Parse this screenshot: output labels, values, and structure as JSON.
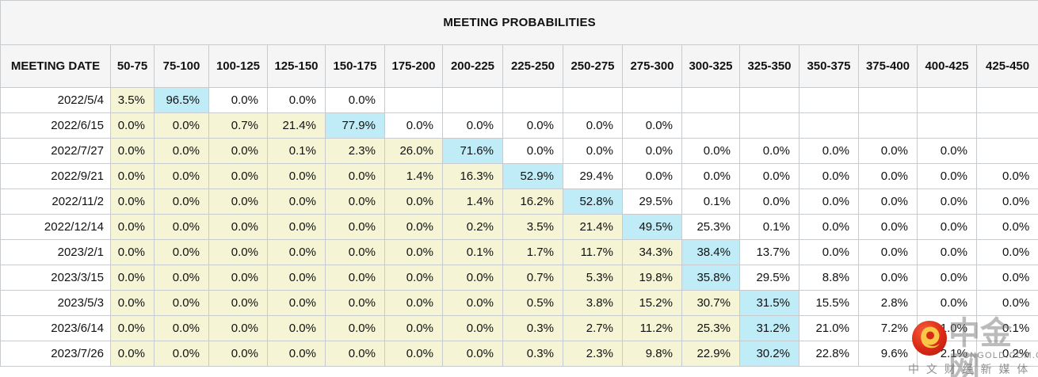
{
  "chart_data": {
    "type": "table",
    "title": "MEETING PROBABILITIES",
    "columns": [
      "MEETING DATE",
      "50-75",
      "75-100",
      "100-125",
      "125-150",
      "150-175",
      "175-200",
      "200-225",
      "225-250",
      "250-275",
      "275-300",
      "300-325",
      "325-350",
      "350-375",
      "375-400",
      "400-425",
      "425-450"
    ],
    "cell_encoding": {
      "format": "[value, background_code]",
      "background_codes": {
        "y": "yellow #f5f5d6",
        "c": "cyan #c0ecf7",
        "w": "white #ffffff",
        "e": "empty white cell"
      }
    },
    "rows": [
      {
        "date": "2022/5/4",
        "cells": [
          [
            "3.5%",
            "y"
          ],
          [
            "96.5%",
            "c"
          ],
          [
            "0.0%",
            "w"
          ],
          [
            "0.0%",
            "w"
          ],
          [
            "0.0%",
            "w"
          ],
          [
            "",
            "e"
          ],
          [
            "",
            "e"
          ],
          [
            "",
            "e"
          ],
          [
            "",
            "e"
          ],
          [
            "",
            "e"
          ],
          [
            "",
            "e"
          ],
          [
            "",
            "e"
          ],
          [
            "",
            "e"
          ],
          [
            "",
            "e"
          ],
          [
            "",
            "e"
          ],
          [
            "",
            "e"
          ]
        ]
      },
      {
        "date": "2022/6/15",
        "cells": [
          [
            "0.0%",
            "y"
          ],
          [
            "0.0%",
            "y"
          ],
          [
            "0.7%",
            "y"
          ],
          [
            "21.4%",
            "y"
          ],
          [
            "77.9%",
            "c"
          ],
          [
            "0.0%",
            "w"
          ],
          [
            "0.0%",
            "w"
          ],
          [
            "0.0%",
            "w"
          ],
          [
            "0.0%",
            "w"
          ],
          [
            "0.0%",
            "w"
          ],
          [
            "",
            "e"
          ],
          [
            "",
            "e"
          ],
          [
            "",
            "e"
          ],
          [
            "",
            "e"
          ],
          [
            "",
            "e"
          ],
          [
            "",
            "e"
          ]
        ]
      },
      {
        "date": "2022/7/27",
        "cells": [
          [
            "0.0%",
            "y"
          ],
          [
            "0.0%",
            "y"
          ],
          [
            "0.0%",
            "y"
          ],
          [
            "0.1%",
            "y"
          ],
          [
            "2.3%",
            "y"
          ],
          [
            "26.0%",
            "y"
          ],
          [
            "71.6%",
            "c"
          ],
          [
            "0.0%",
            "w"
          ],
          [
            "0.0%",
            "w"
          ],
          [
            "0.0%",
            "w"
          ],
          [
            "0.0%",
            "w"
          ],
          [
            "0.0%",
            "w"
          ],
          [
            "0.0%",
            "w"
          ],
          [
            "0.0%",
            "w"
          ],
          [
            "0.0%",
            "w"
          ],
          [
            "",
            "e"
          ]
        ]
      },
      {
        "date": "2022/9/21",
        "cells": [
          [
            "0.0%",
            "y"
          ],
          [
            "0.0%",
            "y"
          ],
          [
            "0.0%",
            "y"
          ],
          [
            "0.0%",
            "y"
          ],
          [
            "0.0%",
            "y"
          ],
          [
            "1.4%",
            "y"
          ],
          [
            "16.3%",
            "y"
          ],
          [
            "52.9%",
            "c"
          ],
          [
            "29.4%",
            "w"
          ],
          [
            "0.0%",
            "w"
          ],
          [
            "0.0%",
            "w"
          ],
          [
            "0.0%",
            "w"
          ],
          [
            "0.0%",
            "w"
          ],
          [
            "0.0%",
            "w"
          ],
          [
            "0.0%",
            "w"
          ],
          [
            "0.0%",
            "w"
          ]
        ]
      },
      {
        "date": "2022/11/2",
        "cells": [
          [
            "0.0%",
            "y"
          ],
          [
            "0.0%",
            "y"
          ],
          [
            "0.0%",
            "y"
          ],
          [
            "0.0%",
            "y"
          ],
          [
            "0.0%",
            "y"
          ],
          [
            "0.0%",
            "y"
          ],
          [
            "1.4%",
            "y"
          ],
          [
            "16.2%",
            "y"
          ],
          [
            "52.8%",
            "c"
          ],
          [
            "29.5%",
            "w"
          ],
          [
            "0.1%",
            "w"
          ],
          [
            "0.0%",
            "w"
          ],
          [
            "0.0%",
            "w"
          ],
          [
            "0.0%",
            "w"
          ],
          [
            "0.0%",
            "w"
          ],
          [
            "0.0%",
            "w"
          ]
        ]
      },
      {
        "date": "2022/12/14",
        "cells": [
          [
            "0.0%",
            "y"
          ],
          [
            "0.0%",
            "y"
          ],
          [
            "0.0%",
            "y"
          ],
          [
            "0.0%",
            "y"
          ],
          [
            "0.0%",
            "y"
          ],
          [
            "0.0%",
            "y"
          ],
          [
            "0.2%",
            "y"
          ],
          [
            "3.5%",
            "y"
          ],
          [
            "21.4%",
            "y"
          ],
          [
            "49.5%",
            "c"
          ],
          [
            "25.3%",
            "w"
          ],
          [
            "0.1%",
            "w"
          ],
          [
            "0.0%",
            "w"
          ],
          [
            "0.0%",
            "w"
          ],
          [
            "0.0%",
            "w"
          ],
          [
            "0.0%",
            "w"
          ]
        ]
      },
      {
        "date": "2023/2/1",
        "cells": [
          [
            "0.0%",
            "y"
          ],
          [
            "0.0%",
            "y"
          ],
          [
            "0.0%",
            "y"
          ],
          [
            "0.0%",
            "y"
          ],
          [
            "0.0%",
            "y"
          ],
          [
            "0.0%",
            "y"
          ],
          [
            "0.1%",
            "y"
          ],
          [
            "1.7%",
            "y"
          ],
          [
            "11.7%",
            "y"
          ],
          [
            "34.3%",
            "y"
          ],
          [
            "38.4%",
            "c"
          ],
          [
            "13.7%",
            "w"
          ],
          [
            "0.0%",
            "w"
          ],
          [
            "0.0%",
            "w"
          ],
          [
            "0.0%",
            "w"
          ],
          [
            "0.0%",
            "w"
          ]
        ]
      },
      {
        "date": "2023/3/15",
        "cells": [
          [
            "0.0%",
            "y"
          ],
          [
            "0.0%",
            "y"
          ],
          [
            "0.0%",
            "y"
          ],
          [
            "0.0%",
            "y"
          ],
          [
            "0.0%",
            "y"
          ],
          [
            "0.0%",
            "y"
          ],
          [
            "0.0%",
            "y"
          ],
          [
            "0.7%",
            "y"
          ],
          [
            "5.3%",
            "y"
          ],
          [
            "19.8%",
            "y"
          ],
          [
            "35.8%",
            "c"
          ],
          [
            "29.5%",
            "w"
          ],
          [
            "8.8%",
            "w"
          ],
          [
            "0.0%",
            "w"
          ],
          [
            "0.0%",
            "w"
          ],
          [
            "0.0%",
            "w"
          ]
        ]
      },
      {
        "date": "2023/5/3",
        "cells": [
          [
            "0.0%",
            "y"
          ],
          [
            "0.0%",
            "y"
          ],
          [
            "0.0%",
            "y"
          ],
          [
            "0.0%",
            "y"
          ],
          [
            "0.0%",
            "y"
          ],
          [
            "0.0%",
            "y"
          ],
          [
            "0.0%",
            "y"
          ],
          [
            "0.5%",
            "y"
          ],
          [
            "3.8%",
            "y"
          ],
          [
            "15.2%",
            "y"
          ],
          [
            "30.7%",
            "y"
          ],
          [
            "31.5%",
            "c"
          ],
          [
            "15.5%",
            "w"
          ],
          [
            "2.8%",
            "w"
          ],
          [
            "0.0%",
            "w"
          ],
          [
            "0.0%",
            "w"
          ]
        ]
      },
      {
        "date": "2023/6/14",
        "cells": [
          [
            "0.0%",
            "y"
          ],
          [
            "0.0%",
            "y"
          ],
          [
            "0.0%",
            "y"
          ],
          [
            "0.0%",
            "y"
          ],
          [
            "0.0%",
            "y"
          ],
          [
            "0.0%",
            "y"
          ],
          [
            "0.0%",
            "y"
          ],
          [
            "0.3%",
            "y"
          ],
          [
            "2.7%",
            "y"
          ],
          [
            "11.2%",
            "y"
          ],
          [
            "25.3%",
            "y"
          ],
          [
            "31.2%",
            "c"
          ],
          [
            "21.0%",
            "w"
          ],
          [
            "7.2%",
            "w"
          ],
          [
            "1.0%",
            "w"
          ],
          [
            "0.1%",
            "w"
          ]
        ]
      },
      {
        "date": "2023/7/26",
        "cells": [
          [
            "0.0%",
            "y"
          ],
          [
            "0.0%",
            "y"
          ],
          [
            "0.0%",
            "y"
          ],
          [
            "0.0%",
            "y"
          ],
          [
            "0.0%",
            "y"
          ],
          [
            "0.0%",
            "y"
          ],
          [
            "0.0%",
            "y"
          ],
          [
            "0.3%",
            "y"
          ],
          [
            "2.3%",
            "y"
          ],
          [
            "9.8%",
            "y"
          ],
          [
            "22.9%",
            "y"
          ],
          [
            "30.2%",
            "c"
          ],
          [
            "22.8%",
            "w"
          ],
          [
            "9.6%",
            "w"
          ],
          [
            "2.1%",
            "w"
          ],
          [
            "0.2%",
            "w"
          ]
        ]
      }
    ],
    "layout_hints": {
      "grid": true,
      "highlight_yellow_cells": "probabilities below modal range",
      "highlight_cyan_cells": "modal (highest) probability per meeting"
    }
  },
  "colors": {
    "yellow_cell": "#f5f5d6",
    "cyan_cell": "#c0ecf7",
    "header_bg": "#f5f5f6",
    "border": "#c7cbce",
    "logo_red": "#d92a17",
    "logo_gold": "#f8c846",
    "watermark_gray": "#7d7d7d"
  },
  "watermark": {
    "logo": "cngold-red-circle-gold-swirl",
    "brand": "中金网",
    "domain": "CNGOLD.COM.CN",
    "tagline": "中 文 财 经 新 媒 体"
  }
}
